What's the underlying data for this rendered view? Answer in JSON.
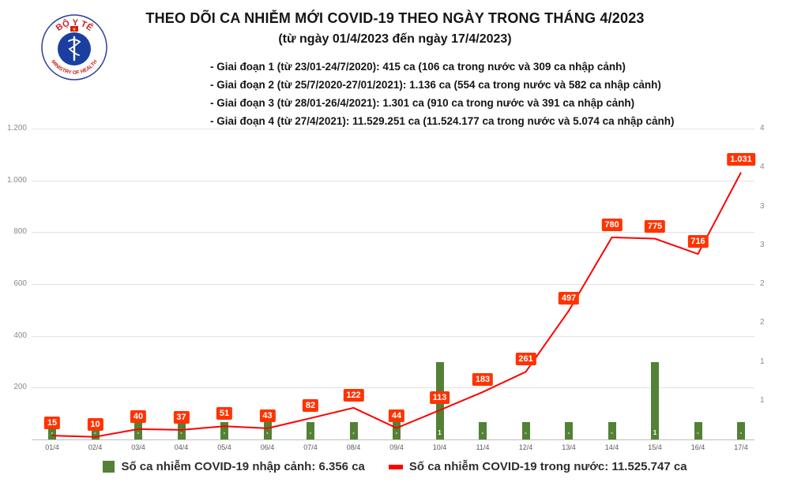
{
  "header": {
    "title": "THEO DÕI CA NHIỄM MỚI COVID-19 THEO NGÀY TRONG THÁNG 4/2023",
    "subtitle": "(từ ngày 01/4/2023 đến ngày 17/4/2023)",
    "bullets": [
      "- Giai đoạn 1 (từ 23/01-24/7/2020): 415 ca (106 ca trong nước và 309 ca nhập cảnh)",
      "- Giai đoạn 2 (từ 25/7/2020-27/01/2021): 1.136 ca (554 ca trong nước và 582 ca nhập cảnh)",
      "- Giai đoạn 3 (từ 28/01-26/4/2021): 1.301 ca (910 ca trong nước và 391 ca nhập cảnh)",
      "- Giai đoạn 4 (từ 27/4/2021): 11.529.251 ca (11.524.177 ca trong nước và 5.074 ca nhập cảnh)"
    ],
    "logo": {
      "top_text": "BỘ Y TẾ",
      "bottom_text": "MINISTRY OF HEALTH"
    }
  },
  "chart_data": {
    "type": "line+bar",
    "title": "THEO DÕI CA NHIỄM MỚI COVID-19 THEO NGÀY TRONG THÁNG 4/2023",
    "categories": [
      "01/4",
      "02/4",
      "03/4",
      "04/4",
      "05/4",
      "06/4",
      "07/4",
      "08/4",
      "09/4",
      "10/4",
      "11/4",
      "12/4",
      "13/4",
      "14/4",
      "15/4",
      "16/4",
      "17/4"
    ],
    "series": [
      {
        "name": "Số ca nhiễm COVID-19 trong nước",
        "type": "line",
        "color": "#ff0000",
        "values": [
          15,
          10,
          40,
          37,
          51,
          43,
          82,
          122,
          44,
          113,
          183,
          261,
          497,
          780,
          775,
          716,
          1031
        ],
        "labels": [
          "15",
          "10",
          "40",
          "37",
          "51",
          "43",
          "82",
          "122",
          "44",
          "113",
          "183",
          "261",
          "497",
          "780",
          "775",
          "716",
          "1.031"
        ]
      },
      {
        "name": "Số ca nhiễm COVID-19 nhập cảnh",
        "type": "bar",
        "color": "#538135",
        "values": [
          0,
          0,
          0,
          0,
          0,
          0,
          0,
          0,
          0,
          1,
          0,
          0,
          0,
          0,
          1,
          0,
          0
        ],
        "labels": [
          "-",
          "-",
          "-",
          "-",
          "-",
          "-",
          "-",
          "-",
          "-",
          "1",
          "-",
          "-",
          "-",
          "-",
          "1",
          "-",
          "-"
        ]
      }
    ],
    "left_axis": {
      "ticks": [
        "1.200",
        "1.000",
        "800",
        "600",
        "400",
        "200"
      ],
      "min": 0,
      "max": 1200
    },
    "right_axis": {
      "ticks": [
        "4",
        "4",
        "3",
        "3",
        "2",
        "2",
        "1",
        "1"
      ],
      "min": 0,
      "max": 4
    },
    "grid": true,
    "legend_position": "bottom"
  },
  "legend": {
    "imported": "Số ca nhiễm COVID-19 nhập cảnh: 6.356 ca",
    "domestic": "Số ca nhiễm COVID-19 trong nước: 11.525.747 ca"
  },
  "colors": {
    "line_red": "#ff0000",
    "point_label_box": "#ff3300",
    "bar_green": "#538135",
    "grid": "#e3e3e3",
    "logo_blue": "#1b3fa0",
    "logo_red": "#cc1f1f",
    "flag_yellow": "#ffd400"
  }
}
